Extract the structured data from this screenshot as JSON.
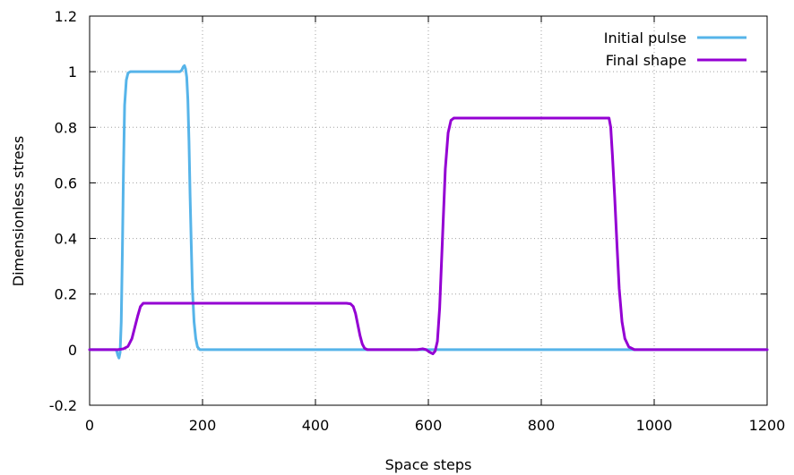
{
  "chart_data": {
    "type": "line",
    "xlabel": "Space steps",
    "ylabel": "Dimensionless stress",
    "xlim": [
      0,
      1200
    ],
    "ylim": [
      -0.2,
      1.2
    ],
    "x_ticks": [
      "0",
      "200",
      "400",
      "600",
      "800",
      "1000",
      "1200"
    ],
    "y_ticks": [
      "-0.2",
      "0",
      "0.2",
      "0.4",
      "0.6",
      "0.8",
      "1",
      "1.2"
    ],
    "grid": true,
    "legend_position": "top-right",
    "series": [
      {
        "name": "Initial pulse",
        "color": "#56b4e9",
        "points": [
          [
            0,
            0
          ],
          [
            46,
            0
          ],
          [
            48,
            -0.005
          ],
          [
            50,
            -0.02
          ],
          [
            52,
            -0.03
          ],
          [
            54,
            -0.01
          ],
          [
            56,
            0.1
          ],
          [
            58,
            0.35
          ],
          [
            60,
            0.65
          ],
          [
            62,
            0.88
          ],
          [
            65,
            0.97
          ],
          [
            68,
            0.995
          ],
          [
            72,
            1.0
          ],
          [
            100,
            1.0
          ],
          [
            130,
            1.0
          ],
          [
            160,
            1.0
          ],
          [
            163,
            1.005
          ],
          [
            166,
            1.018
          ],
          [
            168,
            1.022
          ],
          [
            170,
            1.01
          ],
          [
            172,
            0.98
          ],
          [
            174,
            0.9
          ],
          [
            176,
            0.75
          ],
          [
            178,
            0.55
          ],
          [
            180,
            0.38
          ],
          [
            182,
            0.22
          ],
          [
            185,
            0.1
          ],
          [
            188,
            0.04
          ],
          [
            191,
            0.01
          ],
          [
            195,
            0.0
          ],
          [
            1200,
            0.0
          ]
        ]
      },
      {
        "name": "Final shape",
        "color": "#9400d3",
        "points": [
          [
            0,
            0
          ],
          [
            50,
            0
          ],
          [
            60,
            0.003
          ],
          [
            68,
            0.012
          ],
          [
            75,
            0.04
          ],
          [
            80,
            0.08
          ],
          [
            85,
            0.12
          ],
          [
            90,
            0.155
          ],
          [
            95,
            0.167
          ],
          [
            100,
            0.167
          ],
          [
            200,
            0.167
          ],
          [
            300,
            0.167
          ],
          [
            400,
            0.167
          ],
          [
            455,
            0.167
          ],
          [
            462,
            0.165
          ],
          [
            467,
            0.155
          ],
          [
            471,
            0.13
          ],
          [
            475,
            0.09
          ],
          [
            479,
            0.05
          ],
          [
            483,
            0.02
          ],
          [
            487,
            0.005
          ],
          [
            492,
            0.0
          ],
          [
            580,
            0.0
          ],
          [
            590,
            0.003
          ],
          [
            596,
            0.0
          ],
          [
            603,
            -0.01
          ],
          [
            608,
            -0.015
          ],
          [
            612,
            -0.005
          ],
          [
            616,
            0.03
          ],
          [
            620,
            0.15
          ],
          [
            625,
            0.4
          ],
          [
            630,
            0.65
          ],
          [
            635,
            0.78
          ],
          [
            640,
            0.825
          ],
          [
            645,
            0.833
          ],
          [
            700,
            0.833
          ],
          [
            800,
            0.833
          ],
          [
            900,
            0.833
          ],
          [
            920,
            0.833
          ],
          [
            923,
            0.8
          ],
          [
            926,
            0.7
          ],
          [
            930,
            0.55
          ],
          [
            934,
            0.38
          ],
          [
            938,
            0.22
          ],
          [
            943,
            0.1
          ],
          [
            948,
            0.04
          ],
          [
            955,
            0.01
          ],
          [
            965,
            0.0
          ],
          [
            1200,
            0.0
          ]
        ]
      }
    ]
  }
}
